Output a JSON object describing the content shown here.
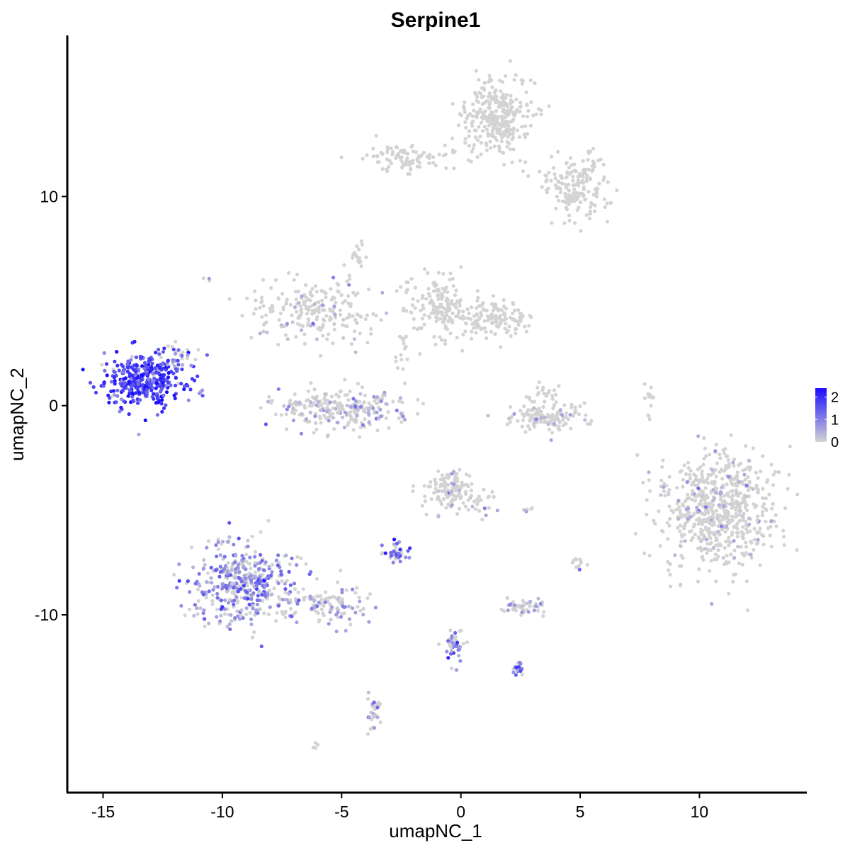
{
  "chart_data": {
    "type": "scatter",
    "title": "Serpine1",
    "xlabel": "umapNC_1",
    "ylabel": "umapNC_2",
    "xlim": [
      -16.5,
      14.5
    ],
    "ylim": [
      -18.5,
      17.7
    ],
    "x_ticks": [
      -15,
      -10,
      -5,
      0,
      5,
      10
    ],
    "x_tick_labels": [
      "-15",
      "-10",
      "-5",
      "0",
      "5",
      "10"
    ],
    "y_ticks": [
      -10,
      0,
      10
    ],
    "y_tick_labels": [
      "-10",
      "0",
      "10"
    ],
    "grid": false,
    "colors": {
      "low": "#d3d3d3",
      "high": "#1a0dff"
    },
    "legend": {
      "placement": "right",
      "type": "colorbar",
      "range": [
        0,
        2.4
      ],
      "ticks": [
        0,
        1,
        2
      ],
      "tick_labels": [
        "0",
        "1",
        "2"
      ]
    },
    "clusters": [
      {
        "center": [
          -13.2,
          1.2
        ],
        "spread": [
          1.0,
          0.75
        ],
        "n": 380,
        "expression_mean": 1.8
      },
      {
        "center": [
          -11.8,
          2.2
        ],
        "spread": [
          0.3,
          0.35
        ],
        "n": 25,
        "expression_mean": 0.6
      },
      {
        "center": [
          -9.0,
          -8.5
        ],
        "spread": [
          1.3,
          1.1
        ],
        "n": 420,
        "expression_mean": 0.9
      },
      {
        "center": [
          -5.5,
          -9.5
        ],
        "spread": [
          1.1,
          0.5
        ],
        "n": 120,
        "expression_mean": 0.4
      },
      {
        "center": [
          -5.0,
          -0.1
        ],
        "spread": [
          1.7,
          0.55
        ],
        "n": 260,
        "expression_mean": 0.25
      },
      {
        "center": [
          -6.0,
          4.6
        ],
        "spread": [
          1.6,
          0.9
        ],
        "n": 220,
        "expression_mean": 0.02
      },
      {
        "center": [
          -4.3,
          7.0
        ],
        "spread": [
          0.2,
          0.5
        ],
        "n": 15,
        "expression_mean": 0.0
      },
      {
        "center": [
          -2.2,
          11.8
        ],
        "spread": [
          1.1,
          0.4
        ],
        "n": 90,
        "expression_mean": 0.0
      },
      {
        "center": [
          1.5,
          13.8
        ],
        "spread": [
          0.9,
          1.0
        ],
        "n": 300,
        "expression_mean": 0.0
      },
      {
        "center": [
          4.8,
          10.5
        ],
        "spread": [
          0.9,
          0.9
        ],
        "n": 170,
        "expression_mean": 0.0
      },
      {
        "center": [
          -1.0,
          4.8
        ],
        "spread": [
          0.7,
          0.9
        ],
        "n": 150,
        "expression_mean": 0.0
      },
      {
        "center": [
          1.3,
          4.2
        ],
        "spread": [
          0.9,
          0.5
        ],
        "n": 140,
        "expression_mean": 0.0
      },
      {
        "center": [
          -2.5,
          2.6
        ],
        "spread": [
          0.2,
          0.6
        ],
        "n": 15,
        "expression_mean": 0.0
      },
      {
        "center": [
          3.5,
          -0.6
        ],
        "spread": [
          1.0,
          0.4
        ],
        "n": 130,
        "expression_mean": 0.02
      },
      {
        "center": [
          3.5,
          0.6
        ],
        "spread": [
          0.4,
          0.3
        ],
        "n": 20,
        "expression_mean": 0.0
      },
      {
        "center": [
          7.9,
          0.3
        ],
        "spread": [
          0.1,
          0.4
        ],
        "n": 12,
        "expression_mean": 0.0
      },
      {
        "center": [
          10.8,
          -5.0
        ],
        "spread": [
          1.4,
          1.6
        ],
        "n": 650,
        "expression_mean": 0.01
      },
      {
        "center": [
          -0.5,
          -4.0
        ],
        "spread": [
          0.6,
          0.55
        ],
        "n": 120,
        "expression_mean": 0.05
      },
      {
        "center": [
          0.8,
          -4.6
        ],
        "spread": [
          0.5,
          0.5
        ],
        "n": 25,
        "expression_mean": 0.2
      },
      {
        "center": [
          -2.6,
          -7.0
        ],
        "spread": [
          0.3,
          0.3
        ],
        "n": 35,
        "expression_mean": 1.3
      },
      {
        "center": [
          2.6,
          -9.6
        ],
        "spread": [
          0.5,
          0.2
        ],
        "n": 50,
        "expression_mean": 0.3
      },
      {
        "center": [
          -0.2,
          -11.5
        ],
        "spread": [
          0.3,
          0.5
        ],
        "n": 40,
        "expression_mean": 1.0
      },
      {
        "center": [
          2.4,
          -12.6
        ],
        "spread": [
          0.15,
          0.15
        ],
        "n": 20,
        "expression_mean": 1.2
      },
      {
        "center": [
          -3.6,
          -14.6
        ],
        "spread": [
          0.2,
          0.55
        ],
        "n": 30,
        "expression_mean": 0.4
      },
      {
        "center": [
          5.0,
          -7.5
        ],
        "spread": [
          0.25,
          0.2
        ],
        "n": 12,
        "expression_mean": 0.2
      },
      {
        "center": [
          -6.1,
          -16.3
        ],
        "spread": [
          0.1,
          0.1
        ],
        "n": 5,
        "expression_mean": 0.0
      },
      {
        "center": [
          2.8,
          -5.0
        ],
        "spread": [
          0.1,
          0.1
        ],
        "n": 5,
        "expression_mean": 0.3
      },
      {
        "center": [
          -10.6,
          6.0
        ],
        "spread": [
          0.08,
          0.08
        ],
        "n": 3,
        "expression_mean": 0.5
      }
    ]
  }
}
